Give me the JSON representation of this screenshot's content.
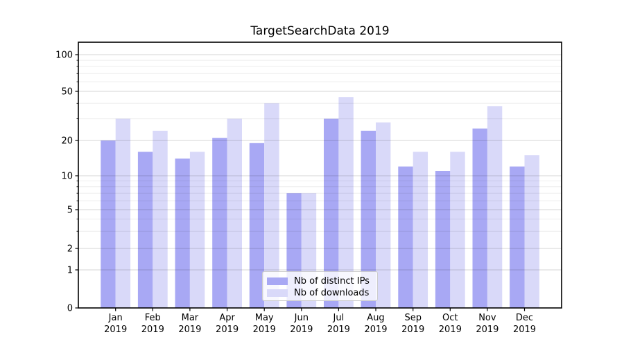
{
  "title": "TargetSearchData 2019",
  "chart_data": {
    "type": "bar",
    "title": "TargetSearchData 2019",
    "categories": [
      "Jan",
      "Feb",
      "Mar",
      "Apr",
      "May",
      "Jun",
      "Jul",
      "Aug",
      "Sep",
      "Oct",
      "Nov",
      "Dec"
    ],
    "year": "2019",
    "series": [
      {
        "name": "Nb of distinct IPs",
        "color": "#a8a8f4",
        "values": [
          20,
          16,
          14,
          21,
          19,
          7,
          30,
          24,
          12,
          11,
          25,
          12
        ]
      },
      {
        "name": "Nb of downloads",
        "color": "#d9d9f9",
        "values": [
          30,
          24,
          16,
          30,
          40,
          7,
          45,
          28,
          16,
          16,
          38,
          15
        ]
      }
    ],
    "yscale": "symlog",
    "ylim": [
      0,
      130
    ],
    "yticks": [
      0,
      1,
      2,
      5,
      10,
      20,
      50,
      100
    ],
    "ytick_labels": [
      "0",
      "1",
      "2",
      "5",
      "10",
      "20",
      "50",
      "100"
    ],
    "y_minor_gridlines": [
      3,
      4,
      6,
      7,
      8,
      9,
      30,
      40,
      60,
      70,
      80,
      90
    ],
    "grid": true,
    "legend_position": "lower center"
  },
  "colors": {
    "background": "#ffffff",
    "bar_distinct_ips": "#a8a8f4",
    "bar_downloads": "#d9d9f9",
    "major_grid": "rgba(0,0,0,0.16)",
    "minor_grid": "rgba(0,0,0,0.07)",
    "axis": "#000000"
  }
}
